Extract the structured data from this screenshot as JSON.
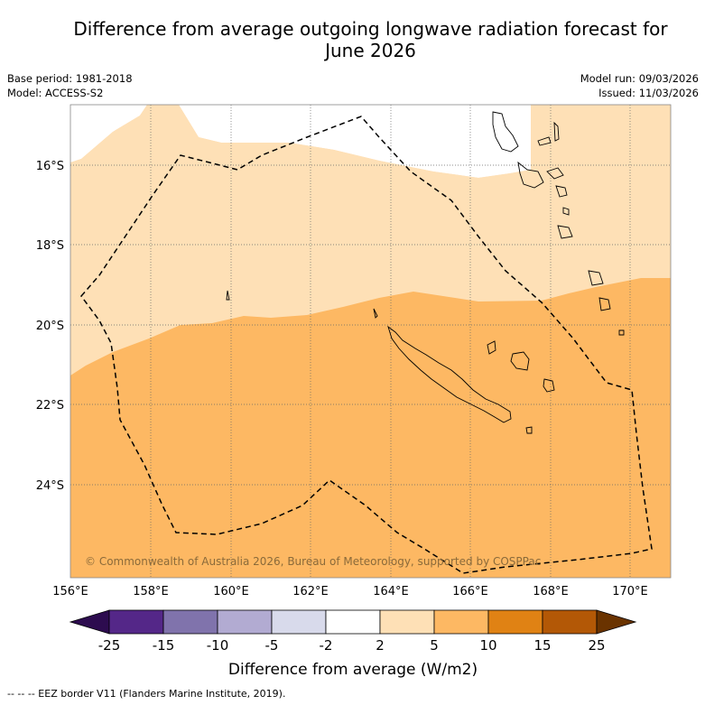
{
  "title": {
    "line1": "Difference from average outgoing longwave radiation forecast for",
    "line2": "June 2026"
  },
  "meta_left": {
    "base_period": "Base period: 1981-2018",
    "model": "Model: ACCESS-S2"
  },
  "meta_right": {
    "model_run": "Model run: 09/03/2026",
    "issued": "Issued: 11/03/2026"
  },
  "map": {
    "lon_labels": [
      "156°E",
      "158°E",
      "160°E",
      "162°E",
      "164°E",
      "166°E",
      "168°E",
      "170°E"
    ],
    "lat_labels": [
      "16°S",
      "18°S",
      "20°S",
      "22°S",
      "24°S"
    ],
    "credit": "© Commonwealth of Australia 2026, Bureau of Meteorology, supported by COSPPac"
  },
  "colorbar": {
    "title": "Difference from average (W/m2)",
    "tick_labels": [
      "-25",
      "-15",
      "-10",
      "-5",
      "-2",
      "2",
      "5",
      "10",
      "15",
      "25"
    ],
    "colors": {
      "below_min": "#2d0c4f",
      "c1": "#542788",
      "c2": "#8073ac",
      "c3": "#b2abd2",
      "c4": "#d8daeb",
      "c5": "#ffffff",
      "c6": "#fee0b6",
      "c7": "#fdb863",
      "c8": "#e08214",
      "c9": "#b35806",
      "above_max": "#6a3300"
    }
  },
  "footnote": "--  --  -- EEZ border V11 (Flanders Marine Institute, 2019)."
}
